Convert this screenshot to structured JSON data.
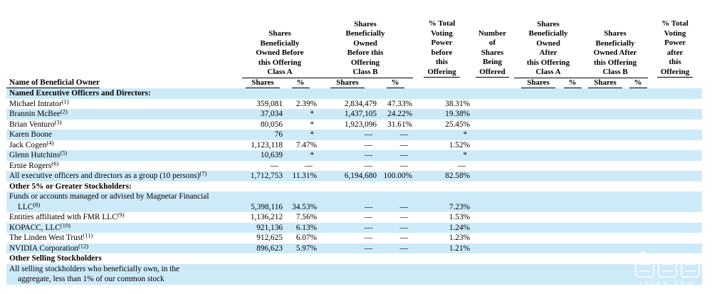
{
  "table": {
    "name_header": "Name of Beneficial Owner",
    "columns": {
      "before_a": {
        "title_lines": "Shares\nBeneficially\nOwned Before\nthis Offering\nClass A"
      },
      "before_b": {
        "title_lines": "Shares\nBeneficially\nOwned\nBefore this\nOffering\nClass B"
      },
      "voting_before": {
        "title_lines": "% Total\nVoting\nPower\nbefore\nthis",
        "underlined_last": "Offering"
      },
      "offered": {
        "title_lines": "Number\nof\nShares\nBeing",
        "underlined_last": "Offered"
      },
      "after_a": {
        "title_lines": "Shares\nBeneficially\nOwned\nAfter\nthis Offering\nClass A"
      },
      "after_b": {
        "title_lines": "Shares\nBeneficially\nOwned After\nthis Offering\nClass B"
      },
      "voting_after": {
        "title_lines": "% Total\nVoting\nPower\nafter\nthis",
        "underlined_last": "Offering"
      }
    },
    "subheaders": {
      "shares": "Shares",
      "pct": "%"
    },
    "rows": [
      {
        "label": "Named Executive Officers and Directors:",
        "bold": true,
        "shaded": true,
        "values": []
      },
      {
        "label": "Michael Intrator",
        "sup": "(1)",
        "shaded": false,
        "values": [
          "359,081",
          "2.39%",
          "2,834,479",
          "47.33%",
          "38.31%",
          "",
          "",
          "",
          "",
          "",
          ""
        ]
      },
      {
        "label": "Brannin McBee",
        "sup": "(2)",
        "shaded": true,
        "values": [
          "37,034",
          "*",
          "1,437,105",
          "24.22%",
          "19.38%",
          "",
          "",
          "",
          "",
          "",
          ""
        ]
      },
      {
        "label": "Brian Venturo",
        "sup": "(3)",
        "shaded": false,
        "values": [
          "80,056",
          "*",
          "1,923,096",
          "31.61%",
          "25.45%",
          "",
          "",
          "",
          "",
          "",
          ""
        ]
      },
      {
        "label": "Karen Boone",
        "shaded": true,
        "values": [
          "76",
          "*",
          "—",
          "—",
          "*",
          "",
          "",
          "",
          "",
          "",
          ""
        ]
      },
      {
        "label": "Jack Cogen",
        "sup": "(4)",
        "shaded": false,
        "values": [
          "1,123,118",
          "7.47%",
          "—",
          "—",
          "1.52%",
          "",
          "",
          "",
          "",
          "",
          ""
        ]
      },
      {
        "label": "Glenn Hutchins",
        "sup": "(5)",
        "shaded": true,
        "values": [
          "10,639",
          "*",
          "—",
          "—",
          "*",
          "",
          "",
          "",
          "",
          "",
          ""
        ]
      },
      {
        "label": "Ernie Rogers",
        "sup": "(6)",
        "shaded": false,
        "values": [
          "—",
          "—",
          "—",
          "—",
          "—",
          "",
          "",
          "",
          "",
          "",
          ""
        ]
      },
      {
        "label": "All executive officers and directors as a group (10 persons)",
        "sup": "(7)",
        "shaded": true,
        "values": [
          "1,712,753",
          "11.31%",
          "6,194,680",
          "100.00%",
          "82.58%",
          "",
          "",
          "",
          "",
          "",
          ""
        ]
      },
      {
        "label": "Other 5% or Greater Stockholders:",
        "bold": true,
        "shaded": false,
        "values": []
      },
      {
        "label": "Funds or accounts managed or advised by Magnetar Financial",
        "label2": "LLC",
        "sup2": "(8)",
        "shaded": true,
        "values": [
          "5,398,116",
          "34.53%",
          "—",
          "—",
          "7.23%",
          "",
          "",
          "",
          "",
          "",
          ""
        ]
      },
      {
        "label": "Entities affiliated with FMR LLC",
        "sup": "(9)",
        "shaded": false,
        "values": [
          "1,136,212",
          "7.56%",
          "—",
          "—",
          "1.53%",
          "",
          "",
          "",
          "",
          "",
          ""
        ]
      },
      {
        "label": "KOPACC, LLC",
        "sup": "(10)",
        "shaded": true,
        "values": [
          "921,136",
          "6.13%",
          "—",
          "—",
          "1.24%",
          "",
          "",
          "",
          "",
          "",
          ""
        ]
      },
      {
        "label": "The Linden West Trust",
        "sup": "(11)",
        "shaded": false,
        "values": [
          "912,625",
          "6.07%",
          "—",
          "—",
          "1.23%",
          "",
          "",
          "",
          "",
          "",
          ""
        ]
      },
      {
        "label": "NVIDIA Corporation",
        "sup": "(12)",
        "shaded": true,
        "values": [
          "896,623",
          "5.97%",
          "—",
          "—",
          "1.21%",
          "",
          "",
          "",
          "",
          "",
          ""
        ]
      },
      {
        "label": "Other Selling Stockholders",
        "bold": true,
        "shaded": false,
        "values": []
      },
      {
        "label": "All selling stockholders who beneficially own, in the",
        "label2": "aggregate, less than 1% of our common stock",
        "shaded": true,
        "values": []
      }
    ]
  },
  "watermark": {
    "text": "智东西",
    "domain": "zhidx.com"
  },
  "colors": {
    "stripe": "#cdeaf9",
    "text": "#000000",
    "header_rule": "#000000"
  }
}
